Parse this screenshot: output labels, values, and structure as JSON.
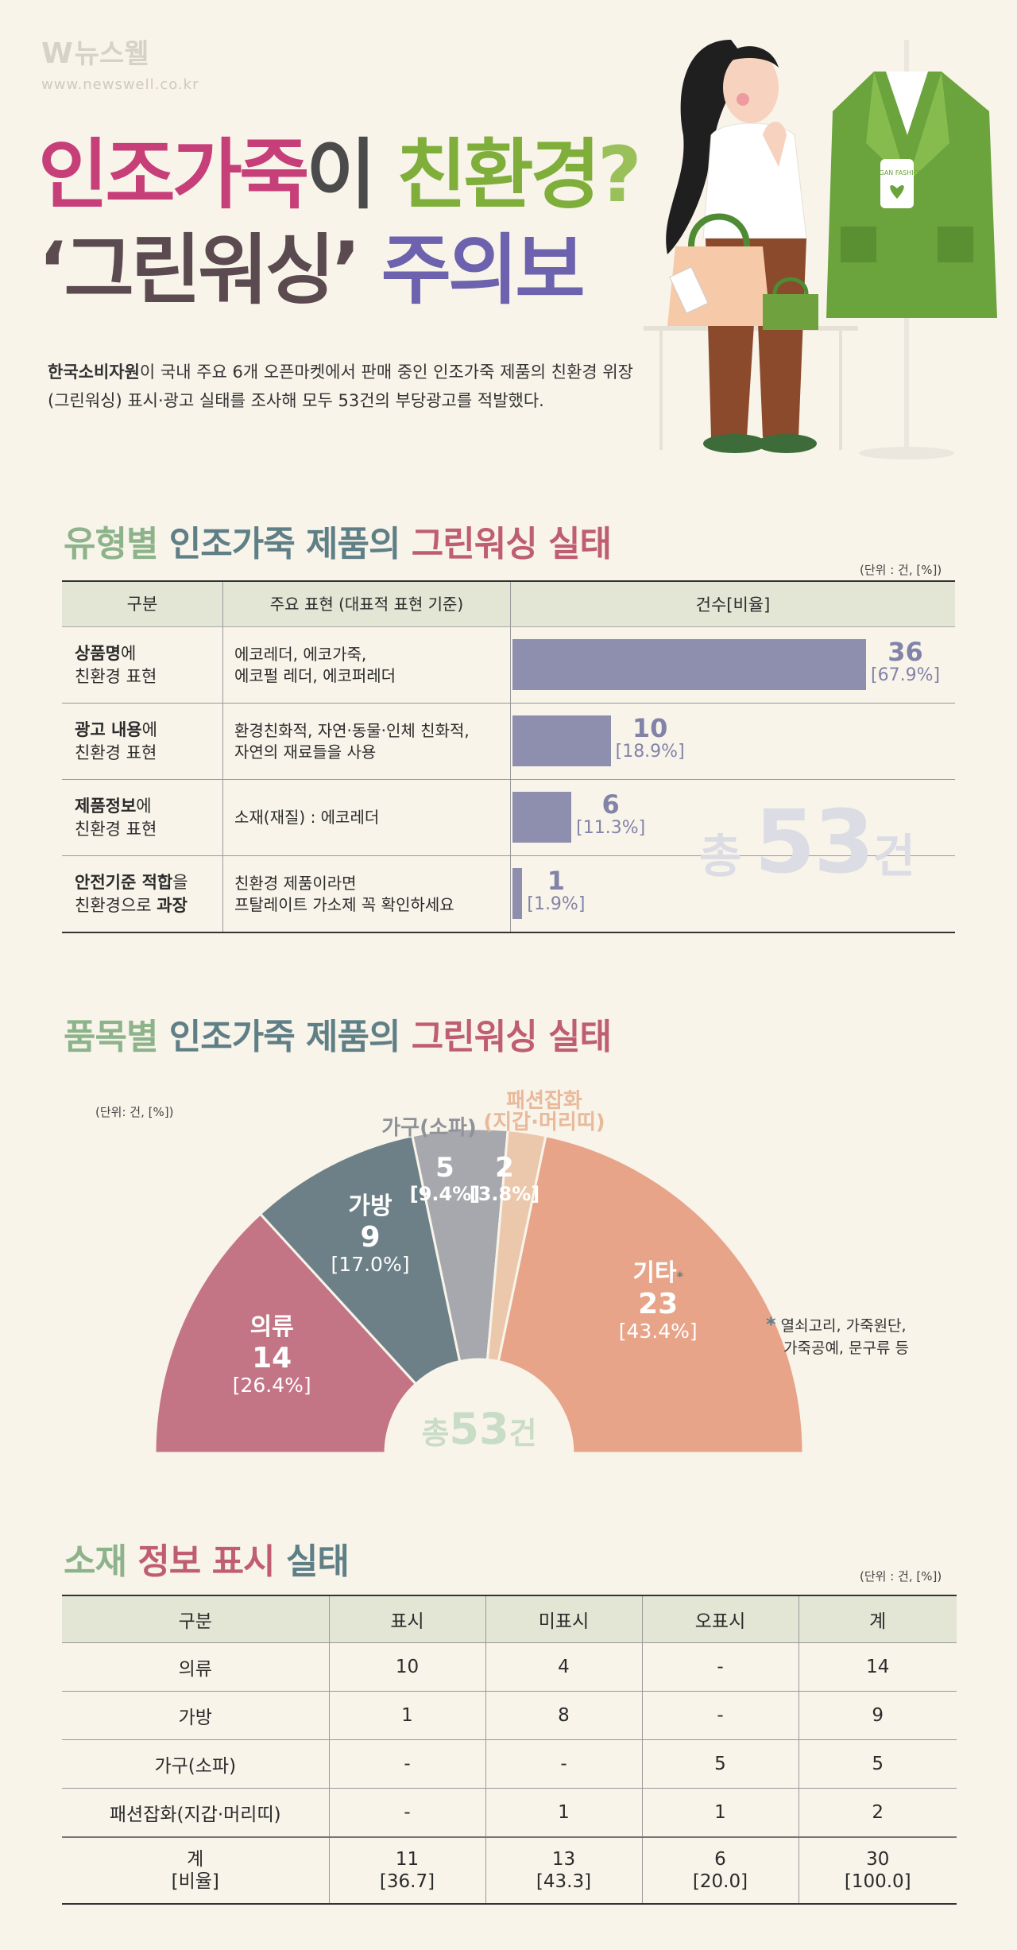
{
  "header": {
    "logo_mark": "W",
    "logo_text": "뉴스웰",
    "logo_url": "www.newswell.co.kr",
    "title_line1": [
      "인조가죽",
      "이 ",
      "친환경",
      "?"
    ],
    "title_line2": [
      "‘그린워싱’",
      " 주의보"
    ],
    "intro_bold": "한국소비자원",
    "intro_rest": "이 국내 주요 6개 오픈마켓에서 판매 중인 인조가죽 제품의 친환경 위장(그린워싱) 표시·광고 실태를 조사해 모두 53건의 부당광고를 적발했다.",
    "tag_text": "VEGAN FASHION"
  },
  "section1": {
    "title": [
      "유형별",
      " 인조가죽 ",
      "제품의",
      " 그린워싱 실태"
    ],
    "unit": "(단위 : 건, [%])",
    "headers": [
      "구분",
      "주요 표현 (대표적 표현 기준)",
      "건수[비율]"
    ],
    "total_text": [
      "총 ",
      "53",
      "건"
    ]
  },
  "chart_data": [
    {
      "type": "bar",
      "orientation": "horizontal",
      "categories": [
        "상품명에 친환경 표현",
        "광고 내용에 친환경 표현",
        "제품정보에 친환경 표현",
        "안전기준 적합을 친환경으로 과장"
      ],
      "values": [
        36,
        10,
        6,
        1
      ],
      "percent_labels": [
        "[67.9%]",
        "[18.9%]",
        "[11.3%]",
        "[1.9%]"
      ],
      "rows": [
        {
          "cat_bold": "상품명",
          "cat_rest": "에",
          "cat_line2": "친환경 표현",
          "expr": [
            "에코레더, 에코가죽,",
            "에코펄 레더, 에코퍼레더"
          ],
          "count": "36",
          "pct": "[67.9%]"
        },
        {
          "cat_bold": "광고 내용",
          "cat_rest": "에",
          "cat_line2": "친환경 표현",
          "expr": [
            "환경친화적, 자연·동물·인체 친화적,",
            "자연의 재료들을 사용"
          ],
          "count": "10",
          "pct": "[18.9%]"
        },
        {
          "cat_bold": "제품정보",
          "cat_rest": "에",
          "cat_line2": "친환경 표현",
          "expr": [
            "소재(재질) : 에코레더",
            ""
          ],
          "count": "6",
          "pct": "[11.3%]"
        },
        {
          "cat_bold": "안전기준 적합",
          "cat_rest": "을",
          "cat_line2a": "친환경으로 ",
          "cat_line2b": "과장",
          "expr": [
            "친환경 제품이라면",
            "프탈레이트 가소제 꼭 확인하세요"
          ],
          "count": "1",
          "pct": "[1.9%]"
        }
      ],
      "xlim": [
        0,
        36
      ]
    },
    {
      "type": "pie",
      "shape": "half-donut",
      "title": [
        "품목별",
        " 인조가죽 ",
        "제품의",
        " 그린워싱 실태"
      ],
      "unit": "(단위: 건, [%])",
      "center_label": [
        "총",
        "53",
        "건"
      ],
      "slices": [
        {
          "name": "의류",
          "value": 14,
          "percent": "[26.4%]",
          "color": "#c47585"
        },
        {
          "name": "가방",
          "value": 9,
          "percent": "[17.0%]",
          "color": "#6d8088"
        },
        {
          "name": "가구(소파)",
          "value": 5,
          "percent": "[9.4%]",
          "color": "#a6a8ad"
        },
        {
          "name": "패션잡화",
          "name2": "(지갑·머리띠)",
          "value": 2,
          "percent": "[3.8%]",
          "color": "#ebc8ac"
        },
        {
          "name": "기타",
          "marker": "*",
          "value": 23,
          "percent": "[43.4%]",
          "color": "#e8a488"
        }
      ],
      "note_marker": "*",
      "note": [
        "열쇠고리, 가죽원단,",
        "가죽공예, 문구류 등"
      ]
    },
    {
      "type": "table",
      "title": [
        "소재",
        " 정보 표시",
        " 실태"
      ],
      "unit": "(단위 : 건, [%])",
      "columns": [
        "구분",
        "표시",
        "미표시",
        "오표시",
        "계"
      ],
      "rows": [
        [
          "의류",
          "10",
          "4",
          "-",
          "14"
        ],
        [
          "가방",
          "1",
          "8",
          "-",
          "9"
        ],
        [
          "가구(소파)",
          "-",
          "-",
          "5",
          "5"
        ],
        [
          "패션잡화(지갑·머리띠)",
          "-",
          "1",
          "1",
          "2"
        ]
      ],
      "total_row": [
        [
          "계",
          "[비율]"
        ],
        [
          "11",
          "[36.7]"
        ],
        [
          "13",
          "[43.3]"
        ],
        [
          "6",
          "[20.0]"
        ],
        [
          "30",
          "[100.0]"
        ]
      ]
    }
  ]
}
